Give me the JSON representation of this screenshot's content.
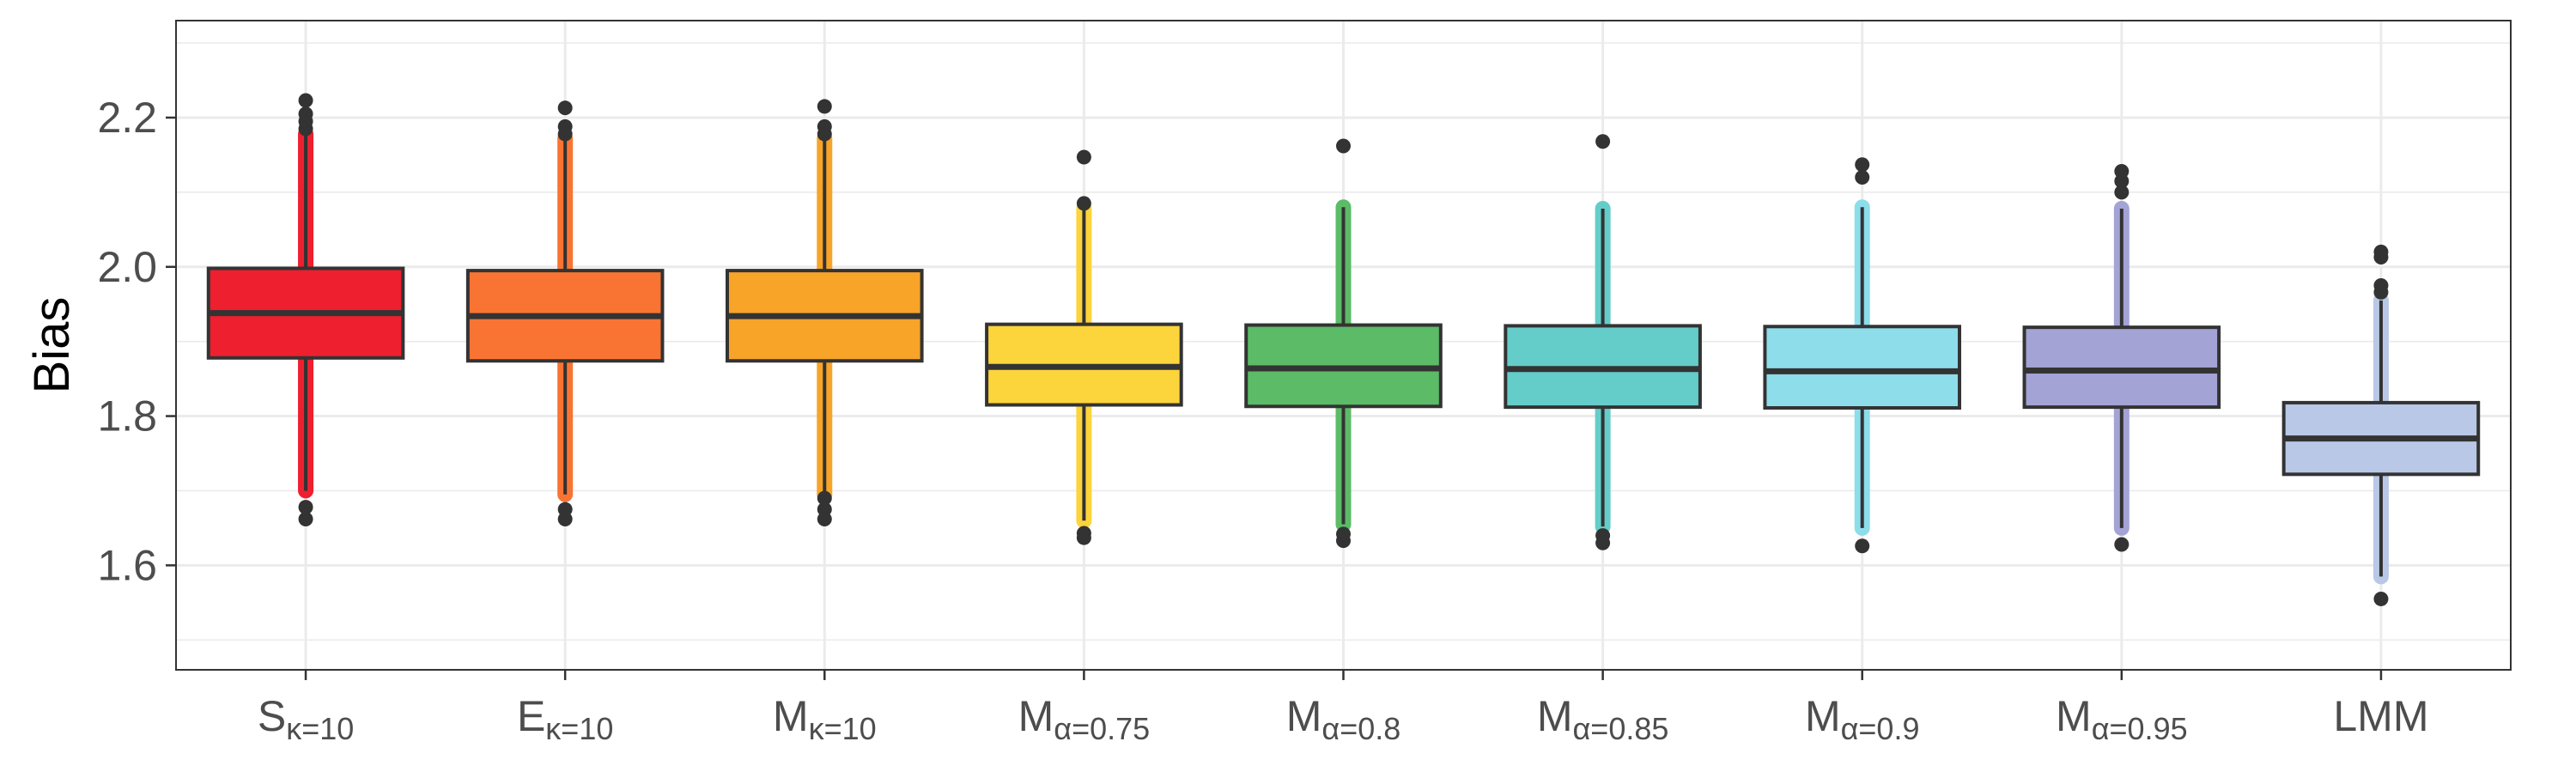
{
  "chart_data": {
    "type": "boxplot",
    "ylabel": "Bias",
    "xlabel": "",
    "ylim": [
      1.46,
      2.33
    ],
    "yticks": [
      1.6,
      1.8,
      2.0,
      2.2
    ],
    "ytick_labels": [
      "1.6",
      "1.8",
      "2.0",
      "2.2"
    ],
    "grid": true,
    "legend": "none",
    "categories": [
      {
        "base": "S",
        "sub": "κ=10"
      },
      {
        "base": "E",
        "sub": "κ=10"
      },
      {
        "base": "M",
        "sub": "κ=10"
      },
      {
        "base": "M",
        "sub": "α=0.75"
      },
      {
        "base": "M",
        "sub": "α=0.8"
      },
      {
        "base": "M",
        "sub": "α=0.85"
      },
      {
        "base": "M",
        "sub": "α=0.9"
      },
      {
        "base": "M",
        "sub": "α=0.95"
      },
      {
        "base": "LMM",
        "sub": ""
      }
    ],
    "boxes": [
      {
        "q1": 1.878,
        "median": 1.938,
        "q3": 1.998,
        "whisker_low": 1.7,
        "whisker_high": 2.178,
        "outliers": [
          1.662,
          1.678,
          2.185,
          2.195,
          2.205,
          2.223
        ],
        "color": "#EE1F2E"
      },
      {
        "q1": 1.874,
        "median": 1.934,
        "q3": 1.995,
        "whisker_low": 1.695,
        "whisker_high": 2.172,
        "outliers": [
          1.662,
          1.675,
          2.178,
          2.188,
          2.213
        ],
        "color": "#F97433"
      },
      {
        "q1": 1.874,
        "median": 1.934,
        "q3": 1.995,
        "whisker_low": 1.695,
        "whisker_high": 2.172,
        "outliers": [
          1.662,
          1.675,
          1.69,
          2.178,
          2.188,
          2.215
        ],
        "color": "#F7A429"
      },
      {
        "q1": 1.815,
        "median": 1.866,
        "q3": 1.923,
        "whisker_low": 1.66,
        "whisker_high": 2.078,
        "outliers": [
          1.637,
          1.643,
          2.085,
          2.147
        ],
        "color": "#FCD43C"
      },
      {
        "q1": 1.813,
        "median": 1.864,
        "q3": 1.922,
        "whisker_low": 1.655,
        "whisker_high": 2.08,
        "outliers": [
          1.633,
          1.642,
          2.162
        ],
        "color": "#5CBB67"
      },
      {
        "q1": 1.812,
        "median": 1.863,
        "q3": 1.921,
        "whisker_low": 1.652,
        "whisker_high": 2.078,
        "outliers": [
          1.63,
          1.64,
          2.168
        ],
        "color": "#64CDCA"
      },
      {
        "q1": 1.811,
        "median": 1.86,
        "q3": 1.92,
        "whisker_low": 1.65,
        "whisker_high": 2.08,
        "outliers": [
          1.626,
          2.12,
          2.137
        ],
        "color": "#8DDDEB"
      },
      {
        "q1": 1.812,
        "median": 1.861,
        "q3": 1.919,
        "whisker_low": 1.65,
        "whisker_high": 2.078,
        "outliers": [
          1.628,
          2.1,
          2.115,
          2.128
        ],
        "color": "#A3A3D6"
      },
      {
        "q1": 1.722,
        "median": 1.77,
        "q3": 1.818,
        "whisker_low": 1.585,
        "whisker_high": 1.955,
        "outliers": [
          1.555,
          1.966,
          1.975,
          2.013,
          2.02
        ],
        "color": "#B9C8E6"
      }
    ]
  }
}
